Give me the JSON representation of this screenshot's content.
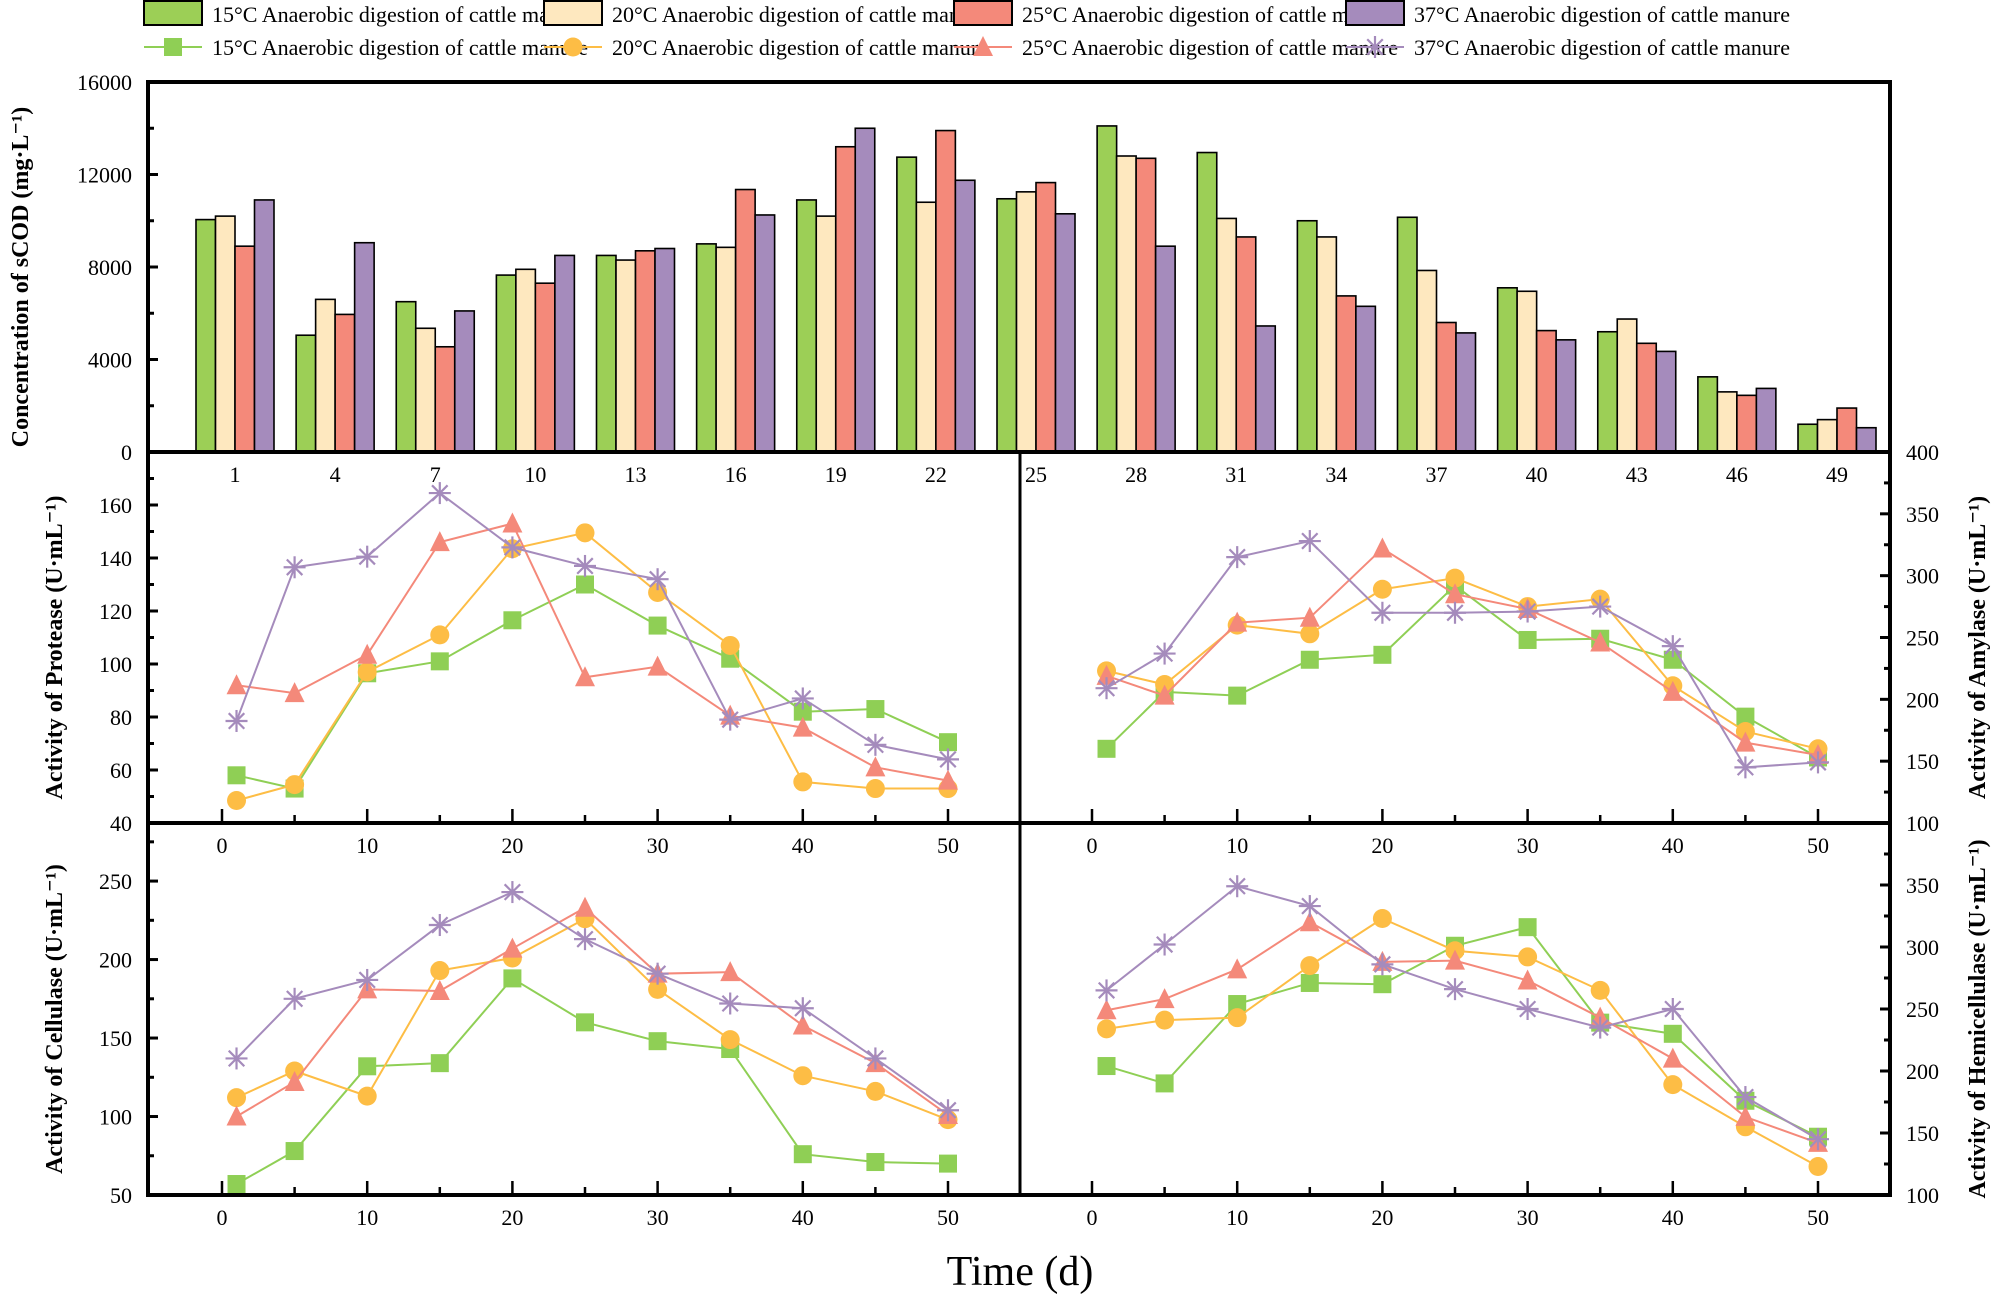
{
  "chart_data": [
    {
      "id": "scod",
      "type": "bar",
      "ylabel": "Concentration of sCOD (mg·L⁻¹)",
      "ylim": [
        0,
        16000
      ],
      "yticks": [
        0,
        4000,
        8000,
        12000,
        16000
      ],
      "categories": [
        "1",
        "4",
        "7",
        "10",
        "13",
        "16",
        "19",
        "22",
        "25",
        "28",
        "31",
        "34",
        "37",
        "40",
        "43",
        "46",
        "49"
      ],
      "series": [
        {
          "name": "15°C Anaerobic digestion of cattle manure",
          "color": "#9ccf56",
          "values": [
            10050,
            5050,
            6500,
            7650,
            8500,
            9000,
            10900,
            12750,
            10950,
            14100,
            12950,
            10000,
            10150,
            7100,
            5200,
            3250,
            1200
          ]
        },
        {
          "name": "20°C Anaerobic digestion of cattle manure",
          "color": "#fee8bf",
          "values": [
            10200,
            6600,
            5350,
            7900,
            8300,
            8850,
            10200,
            10800,
            11250,
            12800,
            10100,
            9300,
            7850,
            6950,
            5750,
            2600,
            1400
          ]
        },
        {
          "name": "25°C Anaerobic digestion of cattle manure",
          "color": "#f4897a",
          "values": [
            8900,
            5950,
            4550,
            7300,
            8700,
            11350,
            13200,
            13900,
            11650,
            12700,
            9300,
            6750,
            5600,
            5250,
            4700,
            2450,
            1900
          ]
        },
        {
          "name": "37°C Anaerobic digestion of cattle manure",
          "color": "#a58bbc",
          "values": [
            10900,
            9050,
            6100,
            8500,
            8800,
            10250,
            14000,
            11750,
            10300,
            8900,
            5450,
            6300,
            5150,
            4850,
            4350,
            2750,
            1050
          ]
        }
      ]
    },
    {
      "id": "protease",
      "type": "line",
      "ylabel": "Activity of  Protease (U·mL⁻¹)",
      "axis_side": "left",
      "ylim": [
        40,
        180
      ],
      "yticks": [
        40,
        60,
        80,
        100,
        120,
        140,
        160
      ],
      "xlim": [
        -5,
        55
      ],
      "xticks": [
        0,
        10,
        20,
        30,
        40,
        50
      ],
      "x": [
        1,
        5,
        10,
        15,
        20,
        25,
        30,
        35,
        40,
        45,
        50
      ],
      "series": [
        {
          "name": "15°C Anaerobic digestion of cattle manure",
          "marker": "square",
          "values": [
            58,
            53,
            96.5,
            101,
            116.5,
            130,
            114.5,
            102,
            82,
            83,
            70.5
          ]
        },
        {
          "name": "20°C Anaerobic digestion of cattle manure",
          "marker": "circle",
          "values": [
            48.5,
            54.5,
            97,
            111,
            143.5,
            149.5,
            127,
            107,
            55.5,
            53,
            53
          ]
        },
        {
          "name": "25°C Anaerobic digestion of cattle manure",
          "marker": "triangle",
          "values": [
            92,
            89,
            103.5,
            146,
            153,
            95,
            99,
            80.5,
            76,
            61,
            56
          ]
        },
        {
          "name": "37°C Anaerobic digestion of cattle manure",
          "marker": "asterisk",
          "values": [
            78.5,
            136.5,
            140.5,
            164.5,
            144,
            137,
            132,
            79,
            87,
            69.5,
            64
          ]
        }
      ]
    },
    {
      "id": "amylase",
      "type": "line",
      "ylabel": "Activity of  Amylase (U·mL⁻¹)",
      "axis_side": "right",
      "ylim": [
        100,
        400
      ],
      "yticks": [
        100,
        150,
        200,
        250,
        300,
        350,
        400
      ],
      "xlim": [
        -5,
        55
      ],
      "xticks": [
        0,
        10,
        20,
        30,
        40,
        50
      ],
      "x": [
        1,
        5,
        10,
        15,
        20,
        25,
        30,
        35,
        40,
        45,
        50
      ],
      "series": [
        {
          "name": "15°C Anaerobic digestion of cattle manure",
          "marker": "square",
          "values": [
            160,
            206,
            203,
            232,
            236,
            292,
            248,
            249,
            232,
            186,
            153
          ]
        },
        {
          "name": "20°C Anaerobic digestion of cattle manure",
          "marker": "circle",
          "values": [
            223,
            212,
            260,
            253,
            289,
            298,
            275,
            281,
            211,
            174,
            160
          ]
        },
        {
          "name": "25°C Anaerobic digestion of cattle manure",
          "marker": "triangle",
          "values": [
            219,
            203,
            262,
            266,
            322,
            285,
            273,
            246,
            206,
            165,
            155
          ]
        },
        {
          "name": "37°C Anaerobic digestion of cattle manure",
          "marker": "asterisk",
          "values": [
            209,
            237,
            315,
            328,
            270,
            270,
            271,
            275,
            243,
            145,
            149
          ]
        }
      ]
    },
    {
      "id": "cellulase",
      "type": "line",
      "ylabel": "Activity of Cellulase (U·mL⁻¹)",
      "axis_side": "left",
      "ylim": [
        50,
        287
      ],
      "yticks": [
        50,
        100,
        150,
        200,
        250
      ],
      "xlim": [
        -5,
        55
      ],
      "xticks": [
        0,
        10,
        20,
        30,
        40,
        50
      ],
      "x": [
        1,
        5,
        10,
        15,
        20,
        25,
        30,
        35,
        40,
        45,
        50
      ],
      "series": [
        {
          "name": "15°C Anaerobic digestion of cattle manure",
          "marker": "square",
          "values": [
            57,
            78,
            132,
            134,
            188,
            160,
            148,
            143,
            76,
            71,
            70
          ]
        },
        {
          "name": "20°C Anaerobic digestion of cattle manure",
          "marker": "circle",
          "values": [
            112,
            129,
            113,
            193,
            201,
            226,
            181,
            149,
            126,
            116,
            98
          ]
        },
        {
          "name": "25°C Anaerobic digestion of cattle manure",
          "marker": "triangle",
          "values": [
            100,
            122,
            181,
            180,
            207,
            233,
            191,
            192,
            158,
            134,
            101
          ]
        },
        {
          "name": "37°C Anaerobic digestion of cattle manure",
          "marker": "asterisk",
          "values": [
            137,
            175,
            187,
            222,
            243,
            213,
            191,
            172,
            169,
            137,
            104
          ]
        }
      ]
    },
    {
      "id": "hemicellulase",
      "type": "line",
      "ylabel": "Activity of Hemicellulase (U·mL⁻¹)",
      "axis_side": "right",
      "ylim": [
        100,
        400
      ],
      "yticks": [
        100,
        150,
        200,
        250,
        300,
        350
      ],
      "xlim": [
        -5,
        55
      ],
      "xticks": [
        0,
        10,
        20,
        30,
        40,
        50
      ],
      "x": [
        1,
        5,
        10,
        15,
        20,
        25,
        30,
        35,
        40,
        45,
        50
      ],
      "series": [
        {
          "name": "15°C Anaerobic digestion of cattle manure",
          "marker": "square",
          "values": [
            204,
            190,
            254,
            271,
            270,
            301,
            316,
            239,
            230,
            176,
            147
          ]
        },
        {
          "name": "20°C Anaerobic digestion of cattle manure",
          "marker": "circle",
          "values": [
            234,
            241,
            243,
            285,
            323,
            297,
            292,
            265,
            189,
            155,
            123
          ]
        },
        {
          "name": "25°C Anaerobic digestion of cattle manure",
          "marker": "triangle",
          "values": [
            249,
            258,
            282,
            320,
            288,
            289,
            273,
            243,
            210,
            163,
            142
          ]
        },
        {
          "name": "37°C Anaerobic digestion of cattle manure",
          "marker": "asterisk",
          "values": [
            265,
            302,
            349,
            333,
            286,
            266,
            250,
            235,
            250,
            179,
            145
          ]
        }
      ]
    }
  ],
  "legend": {
    "bar_row": [
      {
        "label": "15°C Anaerobic digestion of cattle manure",
        "color": "#9ccf56"
      },
      {
        "label": "20°C Anaerobic digestion of cattle manure",
        "color": "#fee8bf"
      },
      {
        "label": "25°C Anaerobic digestion of cattle manure",
        "color": "#f4897a"
      },
      {
        "label": "37°C Anaerobic digestion of cattle manure",
        "color": "#a58bbc"
      }
    ],
    "line_row": [
      {
        "label": "15°C Anaerobic digestion of cattle manure",
        "color": "#8fcf55",
        "marker": "square"
      },
      {
        "label": "20°C Anaerobic digestion of cattle manure",
        "color": "#fdbd45",
        "marker": "circle"
      },
      {
        "label": "25°C Anaerobic digestion of cattle manure",
        "color": "#f4897a",
        "marker": "triangle"
      },
      {
        "label": "37°C Anaerobic digestion of cattle manure",
        "color": "#a58bbc",
        "marker": "asterisk"
      }
    ],
    "placement": "top"
  },
  "line_colors": {
    "square": "#8fcf55",
    "circle": "#fdbd45",
    "triangle": "#f4897a",
    "asterisk": "#a58bbc"
  },
  "xlabel": "Time (d)"
}
